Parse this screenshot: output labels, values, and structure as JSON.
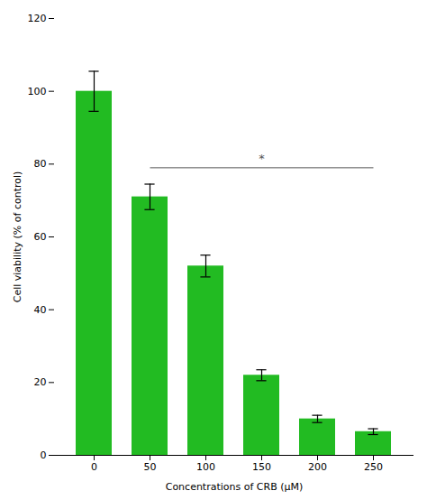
{
  "chart_data": {
    "type": "bar",
    "categories": [
      "0",
      "50",
      "100",
      "150",
      "200",
      "250"
    ],
    "values": [
      100,
      71,
      52,
      22,
      10,
      6.5
    ],
    "errors": [
      5.5,
      3.5,
      3.0,
      1.5,
      1.0,
      0.8
    ],
    "color": "#22bb22",
    "xlabel": "Concentrations of CRB (μM)",
    "ylabel": "Cell viability (% of control)",
    "ylim": [
      0,
      120
    ],
    "yticks": [
      0,
      20,
      40,
      60,
      80,
      100,
      120
    ],
    "significance_bar": {
      "x1": "50",
      "x2": "250",
      "y": 79,
      "color": "#555555"
    },
    "annotations": [
      {
        "text": "*",
        "x": "150",
        "y": 80.5,
        "color": "#555555"
      }
    ]
  }
}
